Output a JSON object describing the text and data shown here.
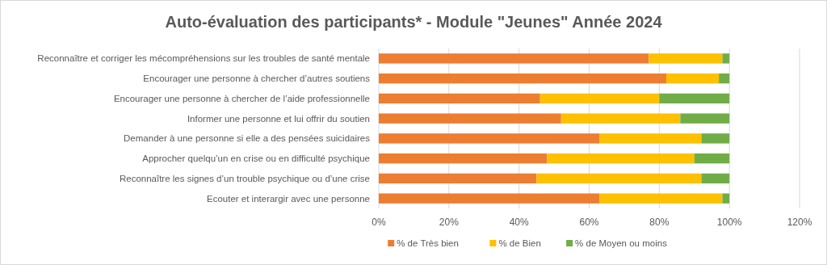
{
  "chart_data": {
    "type": "bar",
    "orientation": "horizontal",
    "stacked": true,
    "title": "Auto-évaluation des participants* - Module \"Jeunes\" Année 2024",
    "categories": [
      "Reconnaître et corriger les mécompréhensions sur les troubles de santé mentale",
      "Encourager une personne à chercher d’autres soutiens",
      "Encourager une personne à chercher de l’aide professionnelle",
      "Informer une personne et lui offrir du soutien",
      "Demander à une personne si elle a des pensées suicidaires",
      "Approcher quelqu’un en crise ou en difficulté psychique",
      "Reconnaître les signes d’un trouble psychique ou d’une crise",
      "Ecouter et interargir avec une personne"
    ],
    "series": [
      {
        "name": "% de Très bien",
        "color": "#ed7d31",
        "values": [
          77,
          82,
          46,
          52,
          63,
          48,
          45,
          63
        ]
      },
      {
        "name": "% de Bien",
        "color": "#ffc000",
        "values": [
          21,
          15,
          34,
          34,
          29,
          42,
          47,
          35
        ]
      },
      {
        "name": "% de Moyen ou moins",
        "color": "#70ad47",
        "values": [
          2,
          3,
          20,
          14,
          8,
          10,
          8,
          2
        ]
      }
    ],
    "xlim": [
      0,
      120
    ],
    "xticks": [
      {
        "value": 0,
        "label": "0%"
      },
      {
        "value": 20,
        "label": "20%"
      },
      {
        "value": 40,
        "label": "40%"
      },
      {
        "value": 60,
        "label": "60%"
      },
      {
        "value": 80,
        "label": "80%"
      },
      {
        "value": 100,
        "label": "100%"
      },
      {
        "value": 120,
        "label": "120%"
      }
    ],
    "grid": "x",
    "legend": "bottom"
  }
}
